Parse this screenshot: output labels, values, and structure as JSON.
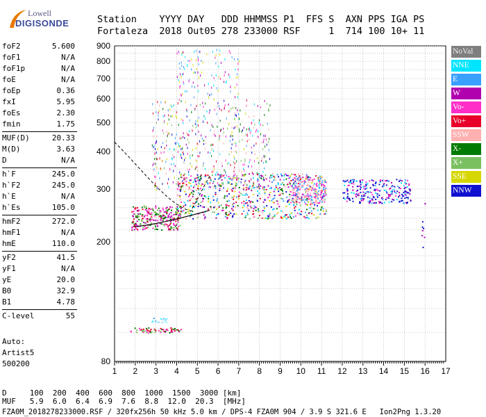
{
  "logo": {
    "line1": "Lowell",
    "line2": "DIGISONDE"
  },
  "header": {
    "labels": "Station    YYYY DAY   DDD HHMMSS P1  FFS S  AXN PPS IGA PS",
    "values": "Fortaleza  2018 Out05 278 233000 RSF     1  714 100 10+ 11"
  },
  "params": [
    {
      "k": "foF2",
      "v": "5.600"
    },
    {
      "k": "foF1",
      "v": "N/A"
    },
    {
      "k": "foF1p",
      "v": "N/A"
    },
    {
      "k": "foE",
      "v": "N/A"
    },
    {
      "k": "foEp",
      "v": "0.36"
    },
    {
      "k": "fxI",
      "v": "5.95"
    },
    {
      "k": "foEs",
      "v": "2.30"
    },
    {
      "k": "fmin",
      "v": "1.75"
    },
    {
      "k": "MUF(D)",
      "v": "20.33"
    },
    {
      "k": "M(D)",
      "v": "3.63"
    },
    {
      "k": "D",
      "v": "N/A"
    },
    {
      "k": "h`F",
      "v": "245.0"
    },
    {
      "k": "h`F2",
      "v": "245.0"
    },
    {
      "k": "h`E",
      "v": "N/A"
    },
    {
      "k": "h`Es",
      "v": "105.0"
    },
    {
      "k": "hmF2",
      "v": "272.0"
    },
    {
      "k": "hmF1",
      "v": "N/A"
    },
    {
      "k": "hmE",
      "v": "110.0"
    },
    {
      "k": "yF2",
      "v": "41.5"
    },
    {
      "k": "yF1",
      "v": "N/A"
    },
    {
      "k": "yE",
      "v": "20.0"
    },
    {
      "k": "B0",
      "v": "32.9"
    },
    {
      "k": "B1",
      "v": "4.78"
    },
    {
      "k": "C-level",
      "v": "55"
    }
  ],
  "auto": {
    "l1": "Auto:",
    "l2": "Artist5",
    "l3": "500200"
  },
  "footer": {
    "d_row": "D     100  200  400  600  800  1000  1500  3000 [km]",
    "muf_row": "MUF   5.9  6.0  6.4  6.9  7.6  8.8  12.0  20.3  [MHz]",
    "bar": "FZA0M_2018278233000.RSF / 320fx256h 50 kHz 5.0 km / DPS-4 FZA0M 904 / 3.9 S 321.6 E   Ion2Png 1.3.20"
  },
  "legend": [
    {
      "label": "NoVal",
      "color": "#7f7f7f"
    },
    {
      "label": "NNE",
      "color": "#00e5ff"
    },
    {
      "label": "E",
      "color": "#3aa0ff"
    },
    {
      "label": "W",
      "color": "#b000b0"
    },
    {
      "label": "Vo-",
      "color": "#ff2ec8"
    },
    {
      "label": "Vo+",
      "color": "#e8002a"
    },
    {
      "label": "SSW",
      "color": "#ffb0b0"
    },
    {
      "label": "X-",
      "color": "#007a00"
    },
    {
      "label": "X+",
      "color": "#7ac060"
    },
    {
      "label": "SSE",
      "color": "#d6d600"
    },
    {
      "label": "NNW",
      "color": "#1010d0"
    }
  ],
  "chart_data": {
    "type": "scatter",
    "x_ticks": [
      "1",
      "2",
      "3",
      "4",
      "5",
      "6",
      "7",
      "8",
      "9",
      "10",
      "11",
      "12",
      "13",
      "14",
      "15",
      "16",
      "17"
    ],
    "y_ticks": [
      "80",
      "200",
      "300",
      "400",
      "500",
      "600",
      "700",
      "800",
      "900"
    ],
    "xlim": [
      1,
      17
    ],
    "y_scale": "log",
    "ylim": [
      80,
      900
    ],
    "grid": true,
    "legend_position": "right",
    "clusters": [
      {
        "name": "Es",
        "x_range": [
          1.75,
          4.2
        ],
        "y_range": [
          100,
          105
        ],
        "color": "#007a00"
      },
      {
        "name": "F-trace-low",
        "x_range": [
          1.8,
          6.5
        ],
        "y_range": [
          220,
          300
        ],
        "color": "#ff2ec8"
      },
      {
        "name": "F-trace-main",
        "x_range": [
          4,
          11.2
        ],
        "y_range": [
          240,
          340
        ],
        "color": "#ffb0b0"
      },
      {
        "name": "spread-F",
        "x_range": [
          2.8,
          8.5
        ],
        "y_range": [
          300,
          600
        ],
        "color": "#b000b0"
      },
      {
        "name": "high-echoes",
        "x_range": [
          4,
          7
        ],
        "y_range": [
          600,
          880
        ],
        "color": "#3aa0ff"
      },
      {
        "name": "NNW-cluster",
        "x_range": [
          12,
          15.3
        ],
        "y_range": [
          270,
          320
        ],
        "color": "#1010d0"
      }
    ]
  }
}
